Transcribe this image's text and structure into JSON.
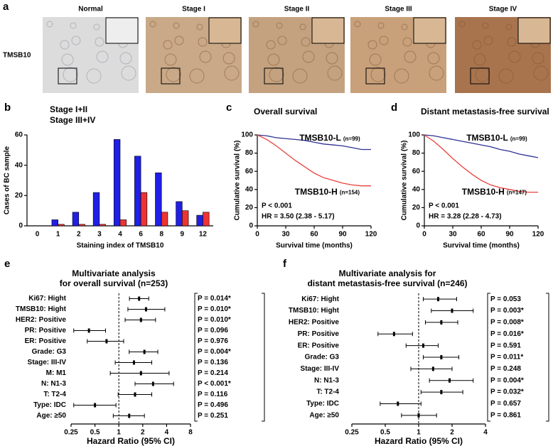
{
  "panel_a": {
    "letter": "a",
    "row_label": "TMSB10",
    "columns": [
      "Normal",
      "Stage I",
      "Stage II",
      "Stage III",
      "Stage IV"
    ]
  },
  "chart_data": [
    {
      "type": "bar",
      "letter": "b",
      "categories": [
        "0",
        "1",
        "2",
        "3",
        "4",
        "6",
        "8",
        "9",
        "12"
      ],
      "series": [
        {
          "name": "Stage I+II",
          "color": "#1f1fe6",
          "values": [
            0,
            4,
            9,
            22,
            57,
            46,
            35,
            16,
            7
          ]
        },
        {
          "name": "Stage III+IV",
          "color": "#ee3333",
          "values": [
            0,
            1,
            1,
            1,
            4,
            22,
            9,
            10,
            9
          ]
        }
      ],
      "ylim": [
        0,
        60
      ],
      "yticks": [
        0,
        20,
        40,
        60
      ],
      "ylabel": "Cases of BC sample",
      "xlabel": "Staining index of TMSB10",
      "legend": "top-left"
    },
    {
      "type": "line",
      "letter": "c",
      "title": "Overall survival",
      "x": [
        0,
        10,
        20,
        30,
        40,
        50,
        60,
        70,
        80,
        90,
        100,
        110,
        120
      ],
      "series": [
        {
          "name": "TMSB10-L",
          "n_label": "(n=99)",
          "color": "#2e3192",
          "values": [
            100,
            99,
            97,
            96,
            95,
            94,
            92,
            90,
            89,
            88,
            86,
            84,
            84
          ]
        },
        {
          "name": "TMSB10-H",
          "n_label": "(n=154)",
          "color": "#e8423c",
          "values": [
            100,
            95,
            88,
            80,
            72,
            65,
            58,
            53,
            50,
            47,
            45,
            44,
            44
          ]
        }
      ],
      "xlim": [
        0,
        120
      ],
      "xticks": [
        0,
        30,
        60,
        90,
        120
      ],
      "ylim": [
        0,
        100
      ],
      "yticks": [
        0,
        20,
        40,
        60,
        80,
        100
      ],
      "xlabel": "Survival time (months)",
      "ylabel": "Cumulative survival (%)",
      "annotations": [
        "P < 0.001",
        "HR = 3.50 (2.38 - 5.17)"
      ]
    },
    {
      "type": "line",
      "letter": "d",
      "title": "Distant metastasis-free survival",
      "x": [
        0,
        10,
        20,
        30,
        40,
        50,
        60,
        70,
        80,
        90,
        100,
        110,
        120
      ],
      "series": [
        {
          "name": "TMSB10-L",
          "n_label": "(n=99)",
          "color": "#2e3192",
          "values": [
            100,
            99,
            97,
            95,
            93,
            91,
            89,
            87,
            84,
            82,
            79,
            77,
            75
          ]
        },
        {
          "name": "TMSB10-H",
          "n_label": "(n=147)",
          "color": "#e8423c",
          "values": [
            100,
            93,
            84,
            74,
            65,
            57,
            50,
            45,
            42,
            40,
            38,
            37,
            37
          ]
        }
      ],
      "xlim": [
        0,
        120
      ],
      "xticks": [
        0,
        30,
        60,
        90,
        120
      ],
      "ylim": [
        0,
        100
      ],
      "yticks": [
        0,
        20,
        40,
        60,
        80,
        100
      ],
      "xlabel": "Survival time (months)",
      "ylabel": "Cumulative survival (%)",
      "annotations": [
        "P < 0.001",
        "HR = 3.28 (2.28 - 4.73)"
      ]
    },
    {
      "type": "forest",
      "letter": "e",
      "title": "Multivariate analysis",
      "subtitle": "for overall survival (n=253)",
      "categories": [
        "Ki67: Hight",
        "TMSB10: Hight",
        "HER2: Positive",
        "PR: Positive",
        "ER: Positive",
        "Grade: G3",
        "Stage: III-IV",
        "M: M1",
        "N: N1-3",
        "T: T2-4",
        "Type: IDC",
        "Age: ≥50"
      ],
      "values": [
        1.8,
        2.2,
        1.9,
        0.42,
        0.7,
        2.1,
        1.55,
        1.9,
        2.7,
        1.6,
        0.5,
        1.35
      ],
      "ci_low": [
        1.36,
        1.3,
        1.2,
        0.27,
        0.4,
        1.35,
        0.9,
        0.78,
        1.6,
        0.98,
        0.27,
        0.85
      ],
      "ci_high": [
        2.38,
        3.8,
        2.9,
        0.68,
        1.15,
        3.1,
        2.6,
        4.3,
        4.9,
        2.6,
        0.92,
        2.1
      ],
      "p_labels": [
        "P = 0.014*",
        "P = 0.010*",
        "P = 0.010*",
        "P = 0.096",
        "P = 0.976",
        "P = 0.004*",
        "P = 0.136",
        "P = 0.214",
        "P < 0.001*",
        "P = 0.116",
        "P = 0.496",
        "P = 0.251"
      ],
      "significant": [
        true,
        true,
        true,
        false,
        false,
        true,
        false,
        false,
        true,
        false,
        false,
        false
      ],
      "significant_color": "#e8262a",
      "color": "#000000",
      "xscale": "log",
      "xlim": [
        0.25,
        8
      ],
      "xticks": [
        0.25,
        0.5,
        1,
        2,
        4,
        8
      ],
      "reference": 1,
      "xlabel": "Hazard Ratio (95% CI)"
    },
    {
      "type": "forest",
      "letter": "f",
      "title": "Multivariate analysis for",
      "subtitle": "distant metastasis-free survival (n=246)",
      "categories": [
        "Ki67: Hight",
        "TMSB10: Hight",
        "HER2: Positive",
        "PR: Positive",
        "ER: Positive",
        "Grade: G3",
        "Stage: III-IV",
        "N: N1-3",
        "T: T2-4",
        "Type: IDC",
        "Age: ≥50"
      ],
      "values": [
        1.5,
        2.0,
        1.6,
        0.6,
        1.1,
        1.6,
        1.35,
        1.9,
        1.6,
        0.65,
        1.0
      ],
      "ci_low": [
        1.1,
        1.3,
        1.15,
        0.43,
        0.77,
        1.1,
        0.85,
        1.25,
        1.05,
        0.45,
        0.7
      ],
      "ci_high": [
        2.2,
        3.1,
        2.25,
        0.88,
        1.5,
        2.3,
        2.0,
        3.1,
        2.5,
        1.05,
        1.45
      ],
      "p_labels": [
        "P = 0.053",
        "P = 0.003*",
        "P = 0.008*",
        "P = 0.016*",
        "P = 0.591",
        "P = 0.011*",
        "P = 0.248",
        "P = 0.004*",
        "P = 0.032*",
        "P = 0.657",
        "P = 0.861"
      ],
      "significant": [
        false,
        true,
        true,
        true,
        false,
        true,
        false,
        true,
        true,
        false,
        false
      ],
      "significant_color": "#e8262a",
      "color": "#000000",
      "xscale": "log",
      "xlim": [
        0.25,
        4
      ],
      "xticks": [
        0.25,
        0.5,
        1,
        2,
        4
      ],
      "reference": 1,
      "xlabel": "Hazard Ratio (95% CI)"
    }
  ]
}
